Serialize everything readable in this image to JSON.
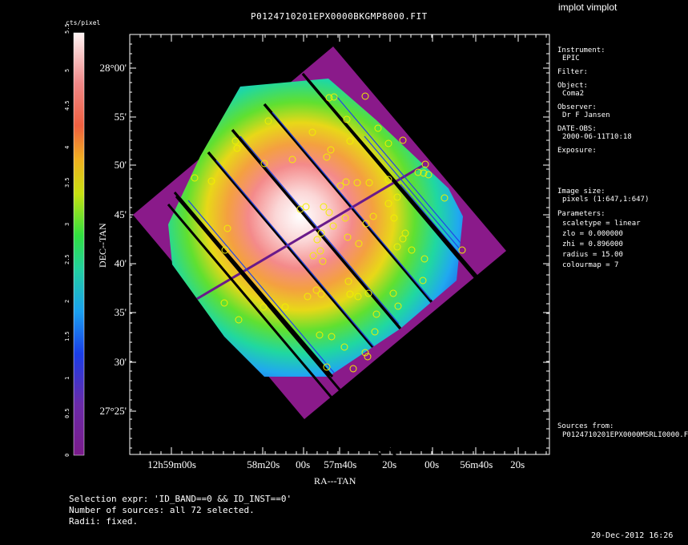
{
  "title": "P0124710201EPX0000BKGMP8000.FIT",
  "app_label": "implot vimplot",
  "colorbar": {
    "unit": "cts/pixel",
    "ticks": [
      "0",
      "0.5",
      "1",
      "1.5",
      "2",
      "2.5",
      "3",
      "3.5",
      "4",
      "4.5",
      "5",
      "5.5"
    ]
  },
  "axes": {
    "xlabel": "RA---TAN",
    "ylabel": "DEC--TAN",
    "x_ticks": [
      {
        "h": "12",
        "hs": "h",
        "m": "59",
        "ms": "m",
        "s": "00",
        "ss": "s"
      },
      {
        "m": "",
        "s": "58",
        "ms2": "m",
        "s2": "20",
        "ss": "s"
      },
      {
        "s": "00",
        "ss": "s"
      },
      {
        "m": "57",
        "ms": "m",
        "s": "40",
        "ss": "s"
      },
      {
        "s": "20",
        "ss": "s"
      },
      {
        "s": "00",
        "ss": "s"
      },
      {
        "m": "56",
        "ms": "m",
        "s": "40",
        "ss": "s"
      },
      {
        "s": "20",
        "ss": "s"
      }
    ],
    "x_tick_text": [
      "12h59m00s",
      "58m20s",
      "00s",
      "57m40s",
      "20s",
      "00s",
      "56m40s",
      "20s"
    ],
    "y_tick_text": [
      "28°00'",
      "55'",
      "50'",
      "45'",
      "40'",
      "35'",
      "30'",
      "27°25'"
    ]
  },
  "info_panel": [
    {
      "label": "Instrument:",
      "value": "EPIC"
    },
    {
      "label": "Filter:",
      "value": ""
    },
    {
      "label": "Object:",
      "value": "Coma2"
    },
    {
      "label": "Observer:",
      "value": "Dr F Jansen"
    },
    {
      "label": "DATE-OBS:",
      "value": "2000-06-11T10:18"
    },
    {
      "label": "Exposure:",
      "value": ""
    }
  ],
  "image_size": {
    "label": "Image size:",
    "value": "pixels (1:647,1:647)"
  },
  "parameters": {
    "label": "Parameters:",
    "lines": [
      "scaletype = linear",
      "zlo = 0.000000",
      "zhi = 0.896000",
      "radius = 15.00",
      "colourmap = 7"
    ]
  },
  "sources": {
    "label": "Sources from:",
    "value": "P0124710201EPX0000MSRLI0000.F"
  },
  "footer": [
    "Selection expr: 'ID_BAND==0 && ID_INST==0'",
    "Number of sources: all 72 selected.",
    "Radii: fixed."
  ],
  "timestamp": "20-Dec-2012 16:26",
  "colors": {
    "purple": "#8a1a8a",
    "circle": "#f0f000",
    "frame": "#ffffff"
  }
}
